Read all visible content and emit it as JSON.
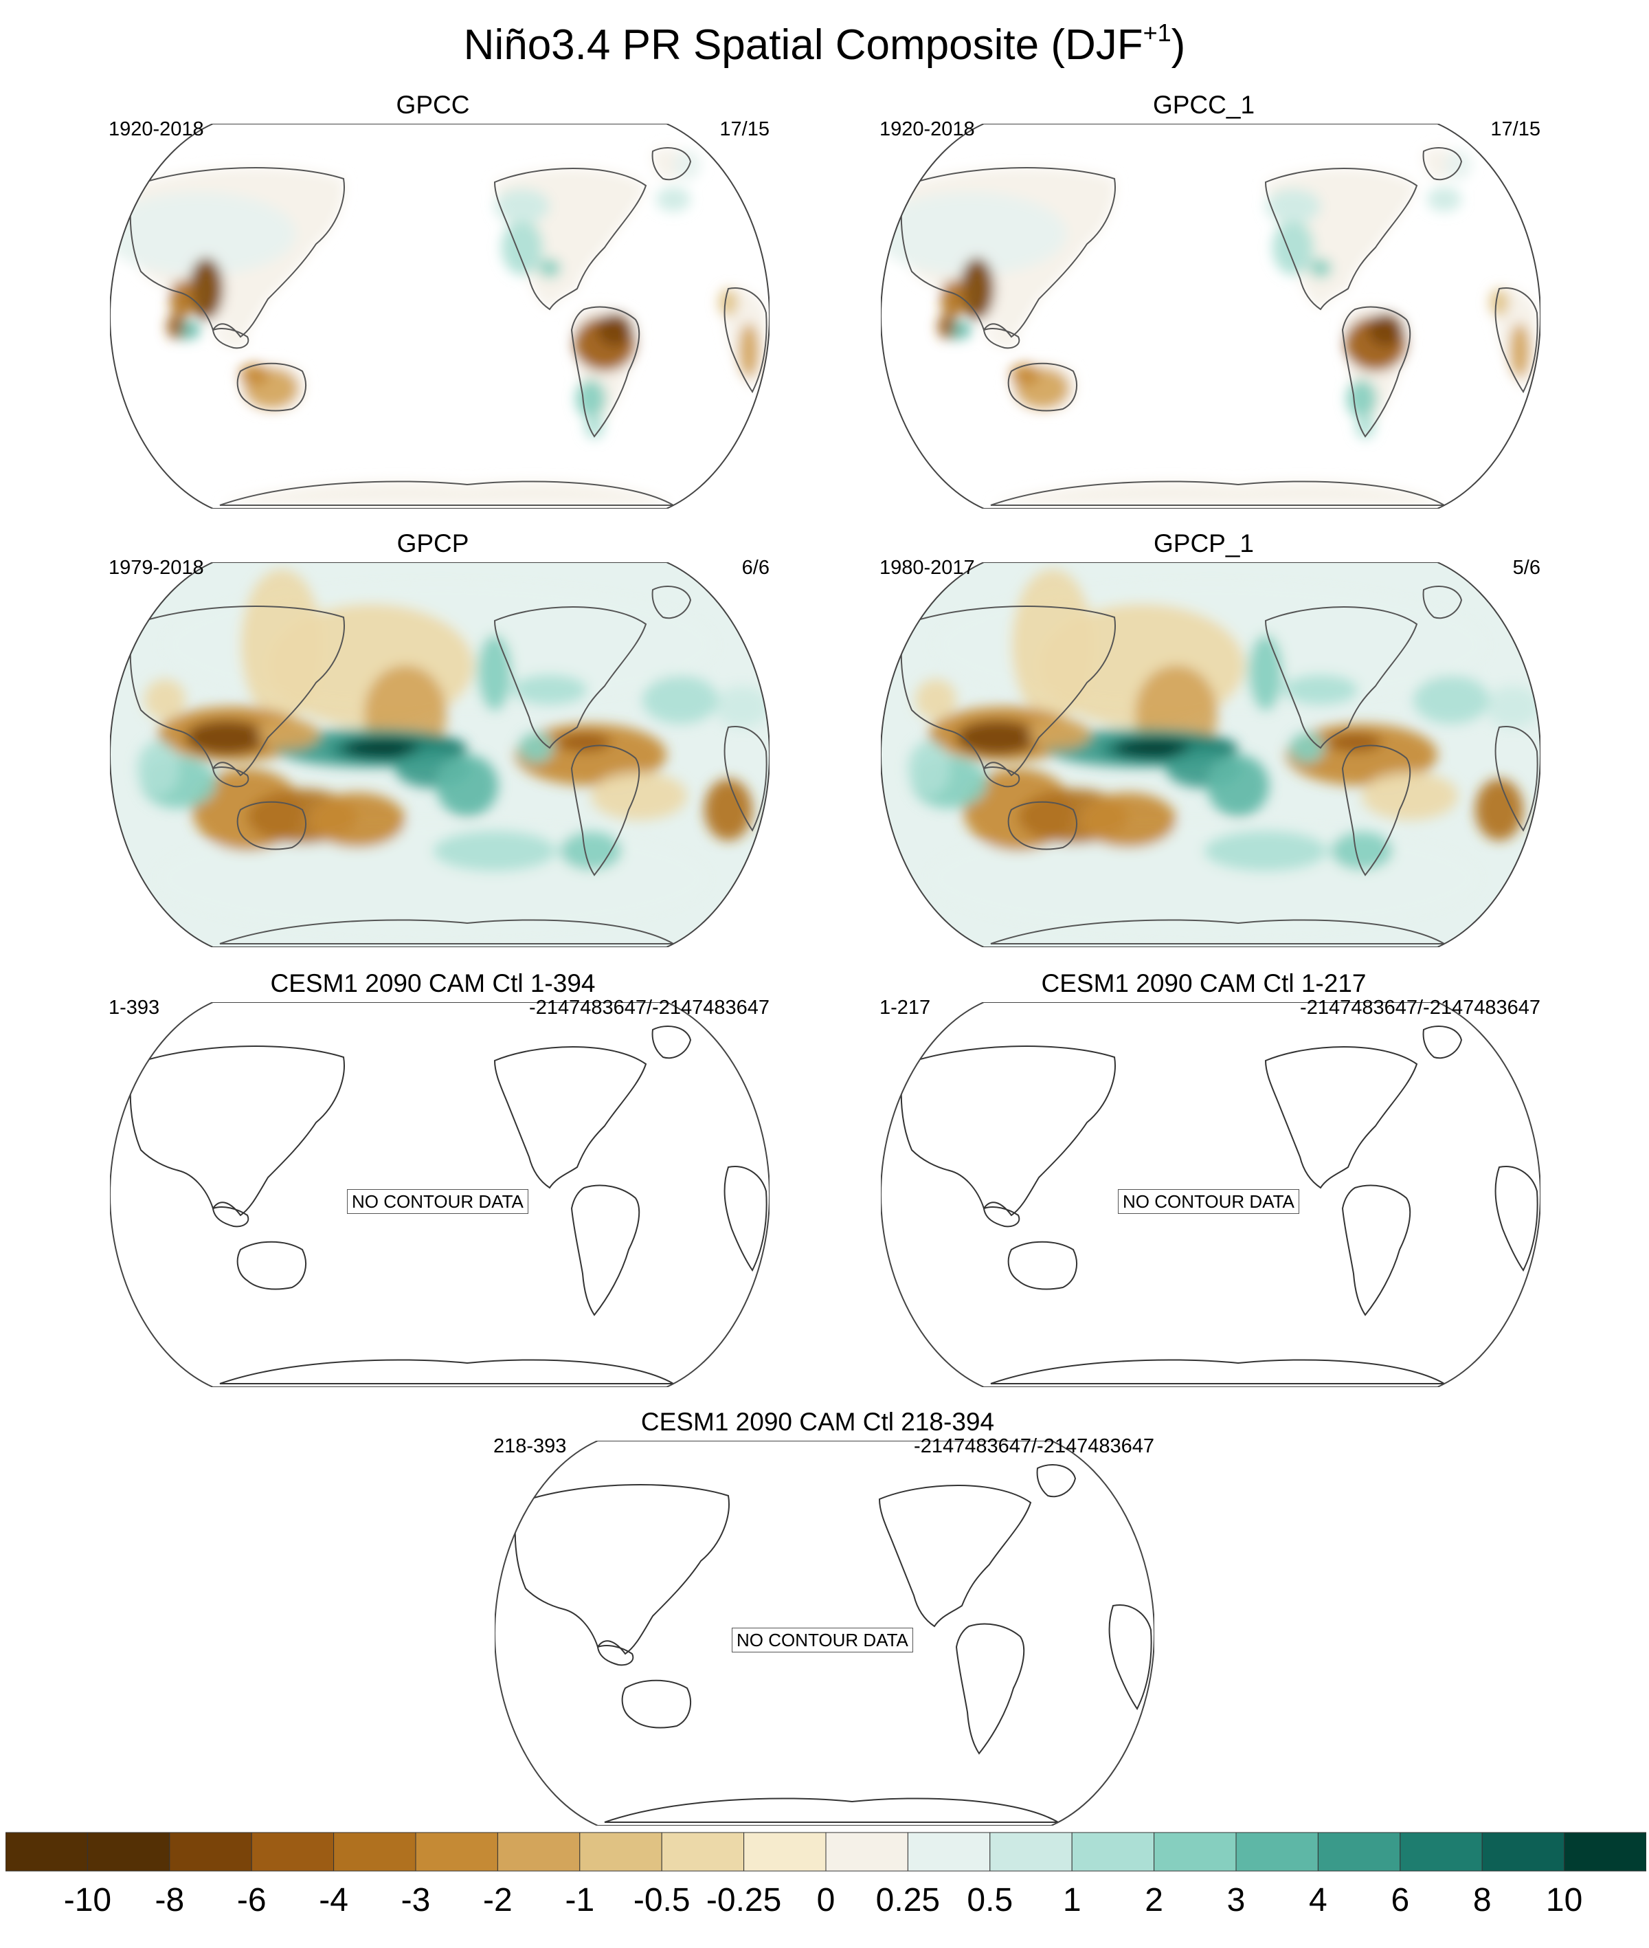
{
  "title": {
    "text": "Niño3.4 PR Spatial Composite (DJF",
    "sup": "+1",
    "close": ")"
  },
  "panels": [
    {
      "title": "GPCC",
      "left_label": "1920-2018",
      "right_label": "17/15",
      "has_data": true,
      "field": "land",
      "no_data_text": ""
    },
    {
      "title": "GPCC_1",
      "left_label": "1920-2018",
      "right_label": "17/15",
      "has_data": true,
      "field": "land",
      "no_data_text": ""
    },
    {
      "title": "GPCP",
      "left_label": "1979-2018",
      "right_label": "6/6",
      "has_data": true,
      "field": "global",
      "no_data_text": ""
    },
    {
      "title": "GPCP_1",
      "left_label": "1980-2017",
      "right_label": "5/6",
      "has_data": true,
      "field": "global",
      "no_data_text": ""
    },
    {
      "title": "CESM1 2090 CAM Ctl 1-394",
      "left_label": "1-393",
      "right_label": "-2147483647/-2147483647",
      "has_data": false,
      "field": "none",
      "no_data_text": "NO CONTOUR DATA"
    },
    {
      "title": "CESM1 2090 CAM Ctl 1-217",
      "left_label": "1-217",
      "right_label": "-2147483647/-2147483647",
      "has_data": false,
      "field": "none",
      "no_data_text": "NO CONTOUR DATA"
    },
    {
      "title": "CESM1 2090 CAM Ctl 218-394",
      "left_label": "218-393",
      "right_label": "-2147483647/-2147483647",
      "has_data": false,
      "field": "none",
      "no_data_text": "NO CONTOUR DATA"
    }
  ],
  "colorbar": {
    "labels": [
      "-10",
      "-8",
      "-6",
      "-4",
      "-3",
      "-2",
      "-1",
      "-0.5",
      "-0.25",
      "0",
      "0.25",
      "0.5",
      "1",
      "2",
      "3",
      "4",
      "6",
      "8",
      "10"
    ],
    "colors": [
      "#543005",
      "#7a4409",
      "#9c5c14",
      "#b0711f",
      "#c58a35",
      "#d3a55b",
      "#e0c283",
      "#ecd9a9",
      "#f6ebcd",
      "#f5f1e8",
      "#e6f2ef",
      "#cdeae4",
      "#acdfd5",
      "#86cfbf",
      "#5eb7a6",
      "#3a9a8a",
      "#1e7d6f",
      "#0d6055",
      "#003c30"
    ]
  }
}
